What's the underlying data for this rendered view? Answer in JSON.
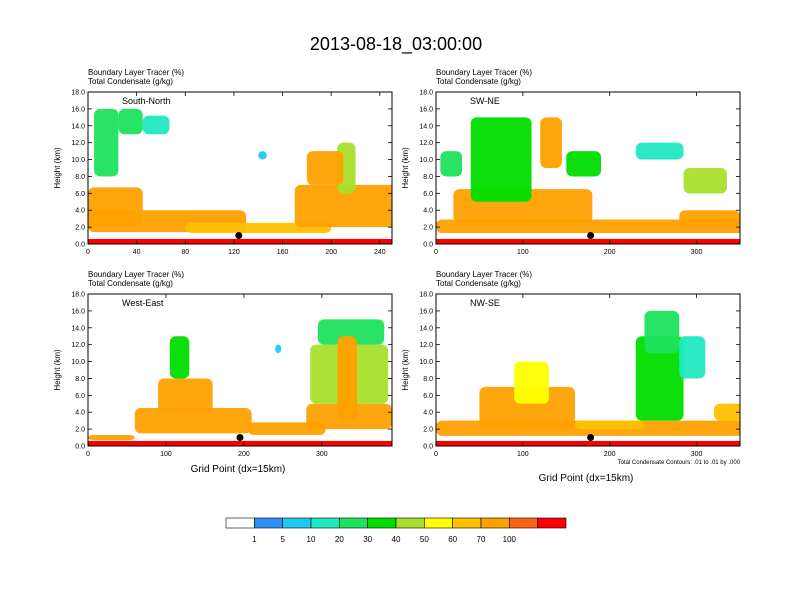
{
  "figure": {
    "title": "2013-08-18_03:00:00",
    "x_axis_label": "Grid Point (dx=15km)",
    "contour_note": "Total Condensate Contours: .01 to .01 by .000"
  },
  "colorbar": {
    "labels": [
      "1",
      "5",
      "10",
      "20",
      "30",
      "40",
      "50",
      "60",
      "70",
      "100"
    ],
    "colors": [
      "#ffffff",
      "#2f8ff5",
      "#21c8f2",
      "#1fe8c0",
      "#1ee15c",
      "#00dd00",
      "#a7e02a",
      "#ffff00",
      "#ffc000",
      "#ffa000",
      "#ff6414",
      "#ff0000"
    ]
  },
  "chart_data": [
    {
      "type": "heatmap",
      "panel_label": "South-North",
      "title_line1": "Boundary Layer Tracer   (%)",
      "title_line2": "Total Condensate   (g/kg)",
      "ylabel": "Height (km)",
      "ylim": [
        0,
        18
      ],
      "xlim": [
        0,
        250
      ],
      "xticks": [
        "0",
        "40",
        "80",
        "120",
        "160",
        "200",
        "240"
      ],
      "yticks": [
        "0.0",
        "2.0",
        "4.0",
        "6.0",
        "8.0",
        "10.0",
        "12.0",
        "14.0",
        "16.0",
        "18.0"
      ],
      "blobs": [
        {
          "x": 0,
          "y": 1.4,
          "w": 130,
          "h": 2.6,
          "v": 85
        },
        {
          "x": 0,
          "y": 2.2,
          "w": 45,
          "h": 4.5,
          "v": 80
        },
        {
          "x": 5,
          "y": 8,
          "w": 20,
          "h": 8,
          "v": 25
        },
        {
          "x": 25,
          "y": 13,
          "w": 20,
          "h": 3,
          "v": 20
        },
        {
          "x": 45,
          "y": 13,
          "w": 22,
          "h": 2.2,
          "v": 15
        },
        {
          "x": 80,
          "y": 1.3,
          "w": 120,
          "h": 1.2,
          "v": 65
        },
        {
          "x": 170,
          "y": 2,
          "w": 85,
          "h": 5,
          "v": 80
        },
        {
          "x": 205,
          "y": 6,
          "w": 15,
          "h": 6,
          "v": 40
        },
        {
          "x": 180,
          "y": 7,
          "w": 30,
          "h": 4,
          "v": 70
        },
        {
          "x": 140,
          "y": 10,
          "w": 7,
          "h": 1,
          "v": 8
        }
      ],
      "dot": {
        "x": 124,
        "y": 1.0
      }
    },
    {
      "type": "heatmap",
      "panel_label": "SW-NE",
      "title_line1": "Boundary Layer Tracer   (%)",
      "title_line2": "Total Condensate   (g/kg)",
      "ylabel": "Height (km)",
      "ylim": [
        0,
        18
      ],
      "xlim": [
        0,
        350
      ],
      "xticks": [
        "0",
        "100",
        "200",
        "300"
      ],
      "yticks": [
        "0.0",
        "2.0",
        "4.0",
        "6.0",
        "8.0",
        "10.0",
        "12.0",
        "14.0",
        "16.0",
        "18.0"
      ],
      "blobs": [
        {
          "x": 0,
          "y": 1.3,
          "w": 360,
          "h": 1.6,
          "v": 75
        },
        {
          "x": 20,
          "y": 2.5,
          "w": 160,
          "h": 4,
          "v": 85
        },
        {
          "x": 40,
          "y": 5,
          "w": 70,
          "h": 10,
          "v": 35
        },
        {
          "x": 120,
          "y": 9,
          "w": 25,
          "h": 6,
          "v": 90
        },
        {
          "x": 5,
          "y": 8,
          "w": 25,
          "h": 3,
          "v": 20
        },
        {
          "x": 150,
          "y": 8,
          "w": 40,
          "h": 3,
          "v": 30
        },
        {
          "x": 230,
          "y": 10,
          "w": 55,
          "h": 2,
          "v": 12
        },
        {
          "x": 285,
          "y": 6,
          "w": 50,
          "h": 3,
          "v": 40
        },
        {
          "x": 280,
          "y": 2,
          "w": 70,
          "h": 2,
          "v": 80
        }
      ],
      "dot": {
        "x": 178,
        "y": 1.0
      }
    },
    {
      "type": "heatmap",
      "panel_label": "West-East",
      "title_line1": "Boundary Layer Tracer   (%)",
      "title_line2": "Total Condensate   (g/kg)",
      "ylabel": "Height (km)",
      "ylim": [
        0,
        18
      ],
      "xlim": [
        0,
        390
      ],
      "xticks": [
        "0",
        "100",
        "200",
        "300"
      ],
      "yticks": [
        "0.0",
        "2.0",
        "4.0",
        "6.0",
        "8.0",
        "10.0",
        "12.0",
        "14.0",
        "16.0",
        "18.0"
      ],
      "blobs": [
        {
          "x": 0,
          "y": 0.7,
          "w": 60,
          "h": 0.6,
          "v": 80
        },
        {
          "x": 60,
          "y": 1.5,
          "w": 150,
          "h": 3,
          "v": 85
        },
        {
          "x": 90,
          "y": 4,
          "w": 70,
          "h": 4,
          "v": 70
        },
        {
          "x": 105,
          "y": 8,
          "w": 25,
          "h": 5,
          "v": 30
        },
        {
          "x": 205,
          "y": 1.3,
          "w": 100,
          "h": 1.5,
          "v": 70
        },
        {
          "x": 280,
          "y": 2,
          "w": 110,
          "h": 3,
          "v": 75
        },
        {
          "x": 285,
          "y": 5,
          "w": 100,
          "h": 7,
          "v": 45
        },
        {
          "x": 295,
          "y": 12,
          "w": 85,
          "h": 3,
          "v": 25
        },
        {
          "x": 320,
          "y": 3,
          "w": 25,
          "h": 10,
          "v": 80
        },
        {
          "x": 240,
          "y": 11,
          "w": 8,
          "h": 1,
          "v": 8
        }
      ],
      "dot": {
        "x": 195,
        "y": 1.0
      }
    },
    {
      "type": "heatmap",
      "panel_label": "NW-SE",
      "title_line1": "Boundary Layer Tracer   (%)",
      "title_line2": "Total Condensate   (g/kg)",
      "ylabel": "Height (km)",
      "ylim": [
        0,
        18
      ],
      "xlim": [
        0,
        350
      ],
      "xticks": [
        "0",
        "100",
        "200",
        "300"
      ],
      "yticks": [
        "0.0",
        "2.0",
        "4.0",
        "6.0",
        "8.0",
        "10.0",
        "12.0",
        "14.0",
        "16.0",
        "18.0"
      ],
      "blobs": [
        {
          "x": 0,
          "y": 1.2,
          "w": 360,
          "h": 1.8,
          "v": 80
        },
        {
          "x": 50,
          "y": 2,
          "w": 110,
          "h": 5,
          "v": 85
        },
        {
          "x": 90,
          "y": 5,
          "w": 40,
          "h": 5,
          "v": 55
        },
        {
          "x": 230,
          "y": 3,
          "w": 55,
          "h": 10,
          "v": 35
        },
        {
          "x": 240,
          "y": 11,
          "w": 40,
          "h": 5,
          "v": 20
        },
        {
          "x": 280,
          "y": 8,
          "w": 30,
          "h": 5,
          "v": 12
        },
        {
          "x": 320,
          "y": 3,
          "w": 35,
          "h": 2,
          "v": 60
        },
        {
          "x": 160,
          "y": 2,
          "w": 80,
          "h": 1,
          "v": 60
        }
      ],
      "dot": {
        "x": 178,
        "y": 1.0
      }
    }
  ]
}
